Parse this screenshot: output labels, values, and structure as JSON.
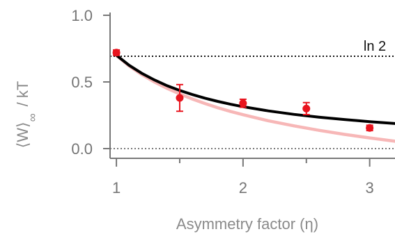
{
  "chart_data": {
    "type": "scatter",
    "xlabel": "Asymmetry factor  (η)",
    "ylabel": "⟨W⟩∞  / kT",
    "ylabel_parts": {
      "left": "⟨W⟩",
      "subscript": "∞",
      "right": "/ kT"
    },
    "xlim": [
      0.95,
      3.2
    ],
    "ylim": [
      0,
      1.0
    ],
    "x_ticks": [
      1,
      2,
      3
    ],
    "x_tick_labels": [
      "1",
      "2",
      "3"
    ],
    "y_ticks": [
      0.0,
      0.5,
      1.0
    ],
    "y_tick_labels": [
      "0.0",
      "0.5",
      "1.0"
    ],
    "grid": false,
    "reference_lines": [
      {
        "y": 0.693,
        "label": "ln 2",
        "style": "dotted",
        "color": "#111111"
      },
      {
        "y": 0.0,
        "label": "",
        "style": "dotted",
        "color": "#777777"
      }
    ],
    "series": [
      {
        "kind": "points",
        "color": "#e8141e",
        "points": [
          {
            "x": 1.0,
            "y": 0.72,
            "err": 0.02
          },
          {
            "x": 1.5,
            "y": 0.38,
            "err": 0.1
          },
          {
            "x": 2.0,
            "y": 0.34,
            "err": 0.03
          },
          {
            "x": 2.5,
            "y": 0.3,
            "err": 0.045
          },
          {
            "x": 3.0,
            "y": 0.155,
            "err": 0.02
          }
        ]
      },
      {
        "kind": "curve",
        "color": "#000000",
        "x": [
          1.0,
          1.1,
          1.2,
          1.3,
          1.4,
          1.5,
          1.6,
          1.7,
          1.8,
          1.9,
          2.0,
          2.2,
          2.4,
          2.6,
          2.8,
          3.0,
          3.2
        ],
        "y": [
          0.7,
          0.625,
          0.565,
          0.515,
          0.472,
          0.436,
          0.405,
          0.378,
          0.354,
          0.333,
          0.314,
          0.283,
          0.257,
          0.236,
          0.218,
          0.202,
          0.188
        ]
      },
      {
        "kind": "curve",
        "color": "#f7b7b7",
        "x": [
          1.0,
          1.1,
          1.2,
          1.3,
          1.4,
          1.5,
          1.6,
          1.7,
          1.8,
          1.9,
          2.0,
          2.2,
          2.4,
          2.6,
          2.8,
          3.0,
          3.2
        ],
        "y": [
          0.7,
          0.62,
          0.555,
          0.5,
          0.452,
          0.41,
          0.372,
          0.338,
          0.307,
          0.279,
          0.254,
          0.209,
          0.171,
          0.137,
          0.107,
          0.08,
          0.055
        ]
      }
    ]
  }
}
